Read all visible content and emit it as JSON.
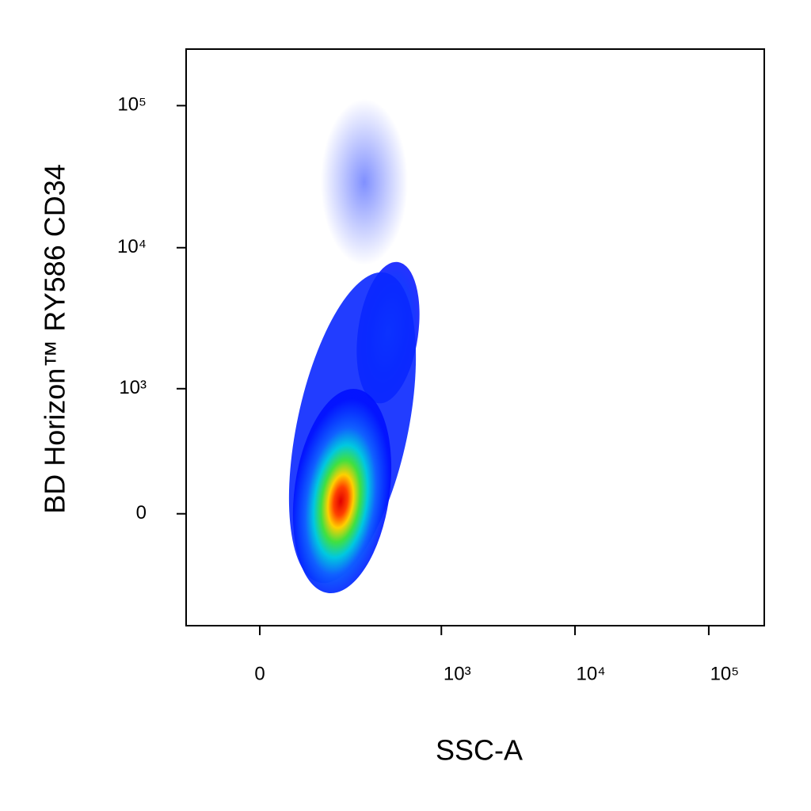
{
  "chart_data": {
    "type": "scatter",
    "x_label": "SSC-A",
    "y_label": "BD Horizon™ RY586  CD34",
    "xscale": "biexponential",
    "yscale": "biexponential",
    "xlim": [
      -144,
      260000
    ],
    "ylim": [
      -800,
      250000
    ],
    "xticks": [
      0,
      {
        "value": 1000,
        "label": "10³"
      },
      {
        "value": 10000,
        "label": "10⁴"
      },
      {
        "value": 100000,
        "label": "10⁵"
      }
    ],
    "yticks": [
      0,
      {
        "value": 1000,
        "label": "10³"
      },
      {
        "value": 10000,
        "label": "10⁴"
      },
      {
        "value": 100000,
        "label": "10⁵"
      }
    ]
  }
}
